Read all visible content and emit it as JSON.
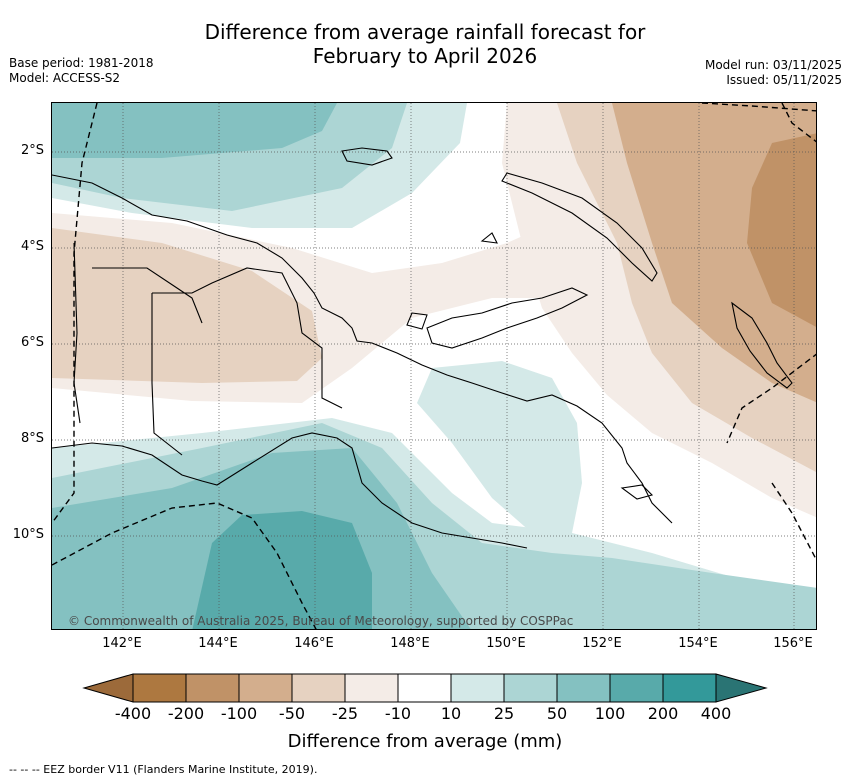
{
  "title_line1": "Difference from average rainfall forecast for",
  "title_line2": "February to April 2026",
  "meta_left": {
    "base_period": "Base period: 1981-2018",
    "model": "Model: ACCESS-S2"
  },
  "meta_right": {
    "model_run": "Model run: 03/11/2025",
    "issued": "Issued: 05/11/2025"
  },
  "map": {
    "lat_ticks": [
      "2°S",
      "4°S",
      "6°S",
      "8°S",
      "10°S"
    ],
    "lon_ticks": [
      "142°E",
      "144°E",
      "146°E",
      "148°E",
      "150°E",
      "152°E",
      "154°E",
      "156°E"
    ],
    "copyright": "© Commonwealth of Australia 2025, Bureau of Meteorology, supported by COSPPac",
    "category_colors": {
      "lt_-400": "#9c6a3a",
      "-400_-200": "#ad7840",
      "-200_-100": "#c09267",
      "-100_-50": "#d3ae8d",
      "-50_-25": "#e6d2c1",
      "-25_-10": "#f4ece7",
      "-10_10": "#ffffff",
      "10_25": "#d4e9e8",
      "25_50": "#acd5d4",
      "50_100": "#84c1c1",
      "100_200": "#58aaaa",
      "200_400": "#33999a",
      "gt_400": "#2a7474"
    }
  },
  "colorbar": {
    "ticks": [
      "-400",
      "-200",
      "-100",
      "-50",
      "-25",
      "-10",
      "10",
      "25",
      "50",
      "100",
      "200",
      "400"
    ],
    "colors": [
      "#ad7840",
      "#c09267",
      "#d3ae8d",
      "#e6d2c1",
      "#f4ece7",
      "#ffffff",
      "#d4e9e8",
      "#acd5d4",
      "#84c1c1",
      "#58aaaa",
      "#33999a"
    ],
    "low_extend_color": "#9c6a3a",
    "high_extend_color": "#2a7474",
    "label": "Difference from average (mm)"
  },
  "eez_note": "--  --  -- EEZ border V11 (Flanders Marine Institute, 2019)."
}
